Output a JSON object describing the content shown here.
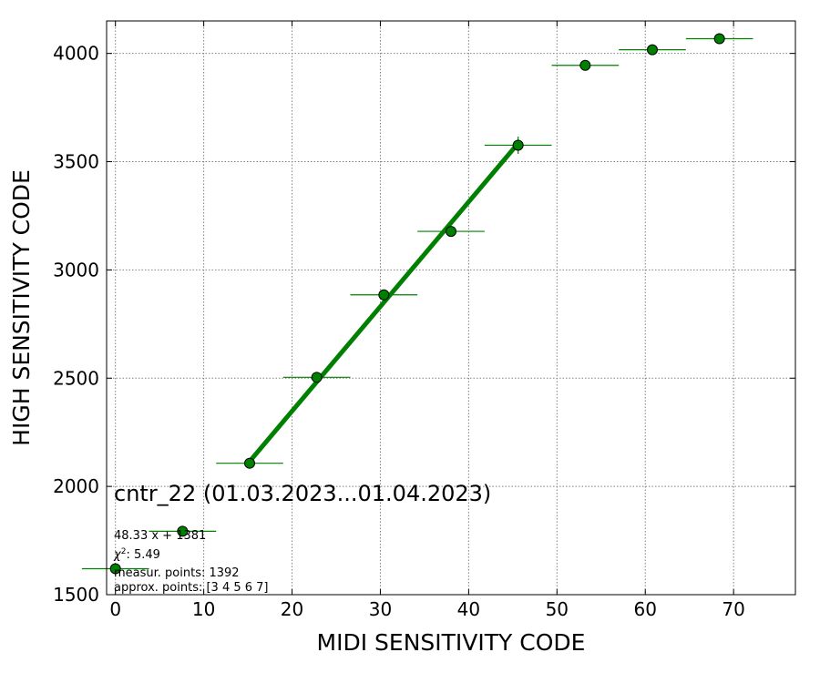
{
  "chart_data": {
    "type": "scatter",
    "xlabel": "MIDI SENSITIVITY CODE",
    "ylabel": "HIGH SENSITIVITY CODE",
    "xlim": [
      -1,
      77
    ],
    "ylim": [
      1500,
      4150
    ],
    "xticks": [
      0,
      10,
      20,
      30,
      40,
      50,
      60,
      70
    ],
    "yticks": [
      1500,
      2000,
      2500,
      3000,
      3500,
      4000
    ],
    "grid": true,
    "point_color": "#008000",
    "point_edge_color": "#000000",
    "fit_color": "#008000",
    "series": [
      {
        "points": [
          {
            "x": 0.0,
            "y": 1620,
            "xerr": 3.8,
            "yerr": 0
          },
          {
            "x": 7.6,
            "y": 1793,
            "xerr": 3.8,
            "yerr": 0
          },
          {
            "x": 15.2,
            "y": 2107,
            "xerr": 3.8,
            "yerr": 0
          },
          {
            "x": 22.8,
            "y": 2504,
            "xerr": 3.8,
            "yerr": 0
          },
          {
            "x": 30.4,
            "y": 2885,
            "xerr": 3.8,
            "yerr": 0
          },
          {
            "x": 38.0,
            "y": 3178,
            "xerr": 3.8,
            "yerr": 20
          },
          {
            "x": 45.6,
            "y": 3576,
            "xerr": 3.8,
            "yerr": 40
          },
          {
            "x": 53.2,
            "y": 3945,
            "xerr": 3.8,
            "yerr": 0
          },
          {
            "x": 60.8,
            "y": 4017,
            "xerr": 3.8,
            "yerr": 0
          },
          {
            "x": 68.4,
            "y": 4068,
            "xerr": 3.8,
            "yerr": 0
          }
        ]
      }
    ],
    "fit": {
      "slope": 48.33,
      "intercept": 1381,
      "x_range": [
        15.2,
        45.6
      ]
    },
    "annotations": {
      "title": "cntr_22 (01.03.2023...01.04.2023)",
      "equation": "48.33 x + 1381",
      "chi2_label": "χ",
      "chi2_sup": "2",
      "chi2_value": ": 5.49",
      "measur": "measur. points: 1392",
      "approx": "approx. points: [3 4 5 6 7]"
    }
  }
}
